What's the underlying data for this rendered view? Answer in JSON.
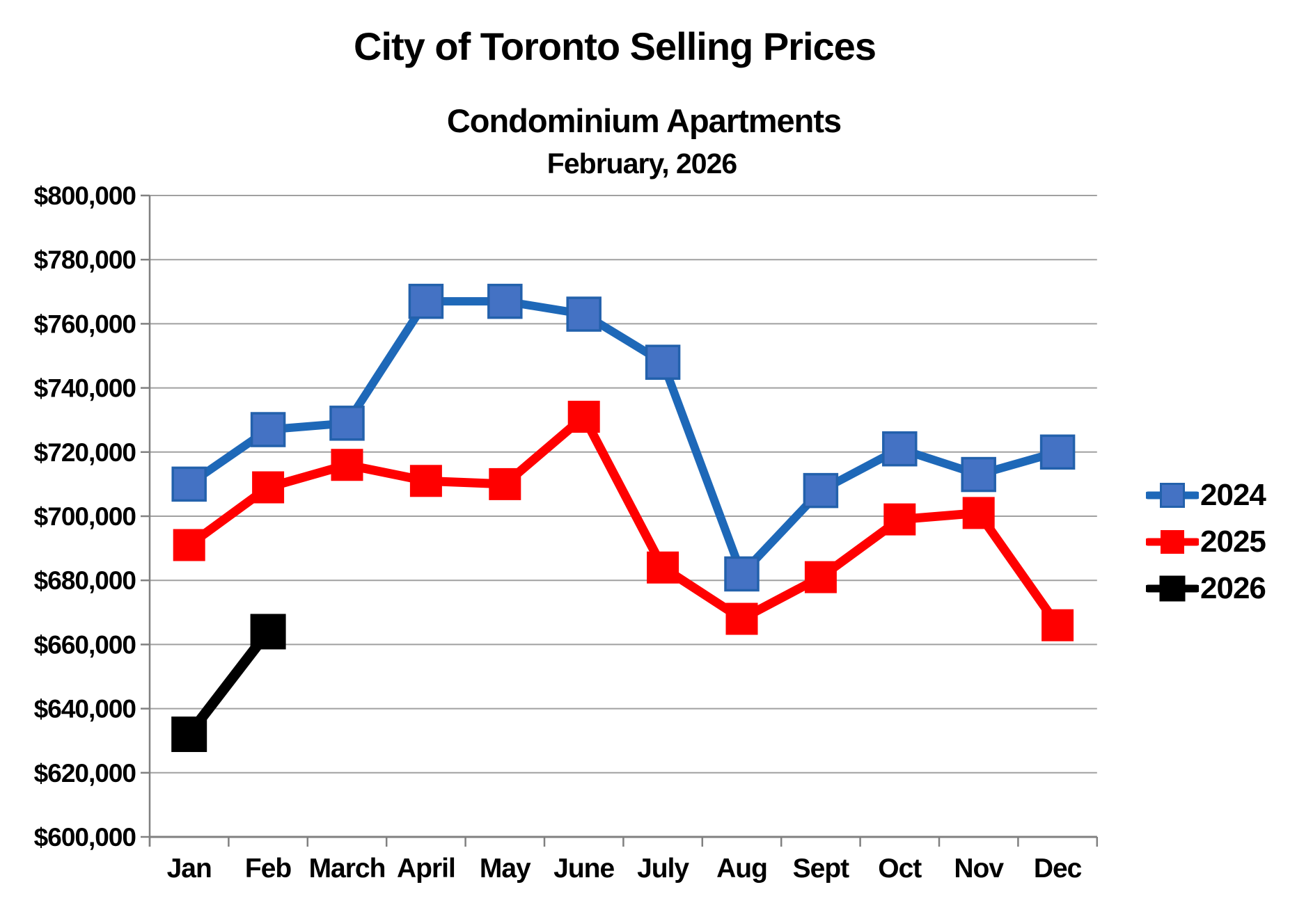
{
  "title": "City of Toronto Selling Prices",
  "subtitle": "Condominium Apartments",
  "period": "February, 2026",
  "colors": {
    "background": "#FFFFFF",
    "gridline": "#A0A0A0",
    "axis": "#808080",
    "text": "#000000",
    "series_2024_line": "#1E68B8",
    "series_2024_marker_fill": "#4472C4",
    "series_2024_marker_border": "#2361AC",
    "series_2025": "#FF0000",
    "series_2026": "#000000"
  },
  "chart_data": {
    "type": "line",
    "title": "City of Toronto Selling Prices",
    "subtitle": "Condominium Apartments",
    "period_label": "February, 2026",
    "categories": [
      "Jan",
      "Feb",
      "March",
      "April",
      "May",
      "June",
      "July",
      "Aug",
      "Sept",
      "Oct",
      "Nov",
      "Dec"
    ],
    "series": [
      {
        "name": "2024",
        "line_color": "#1E68B8",
        "marker_fill": "#4472C4",
        "marker_border": "#2361AC",
        "values": [
          710000,
          727000,
          729000,
          767000,
          767000,
          763000,
          748000,
          682000,
          708000,
          721000,
          713000,
          720000
        ]
      },
      {
        "name": "2025",
        "line_color": "#FF0000",
        "marker_fill": "#FF0000",
        "marker_border": "#FF0000",
        "values": [
          691000,
          709000,
          716000,
          711000,
          710000,
          731000,
          684000,
          668000,
          681000,
          699000,
          701000,
          666000
        ]
      },
      {
        "name": "2026",
        "line_color": "#000000",
        "marker_fill": "#000000",
        "marker_border": "#000000",
        "values": [
          632000,
          664000
        ]
      }
    ],
    "y_axis": {
      "min": 600000,
      "max": 800000,
      "step": 20000,
      "tick_prefix": "$",
      "tick_labels": [
        "$600,000",
        "$620,000",
        "$640,000",
        "$660,000",
        "$680,000",
        "$700,000",
        "$720,000",
        "$740,000",
        "$760,000",
        "$780,000",
        "$800,000"
      ]
    },
    "grid": true,
    "legend_position": "right",
    "legend_labels": [
      "2024",
      "2025",
      "2026"
    ]
  }
}
